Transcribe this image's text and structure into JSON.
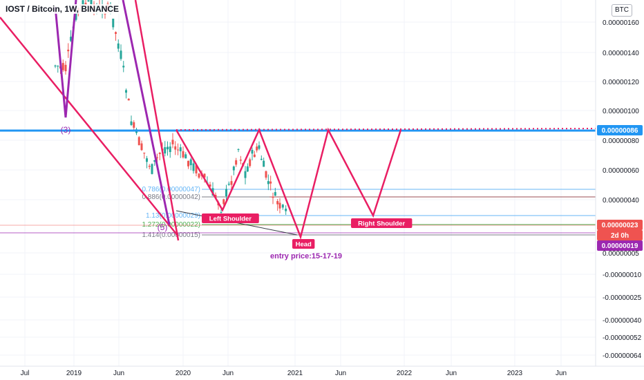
{
  "header": {
    "title": "IOST / Bitcoin, 1W, BINANCE",
    "currency_button": "BTC"
  },
  "colors": {
    "pattern": "#e91e63",
    "wave": "#9c27b0",
    "resistance": "#2196f3",
    "up": "#26a69a",
    "down": "#ef5350",
    "annotation": "#9c27b0"
  },
  "chart_data": {
    "type": "candlestick",
    "symbol": "IOST / Bitcoin",
    "interval": "1W",
    "exchange": "BINANCE",
    "y_tick_labels": [
      "0.00000160",
      "0.00000140",
      "0.00000120",
      "0.00000100",
      "0.00000080",
      "0.00000060",
      "0.00000040",
      "0.00000005",
      "-0.00000010",
      "-0.00000025",
      "-0.00000040",
      "-0.00000052",
      "-0.00000064"
    ],
    "x_tick_labels": [
      "Jul",
      "2019",
      "Jun",
      "2020",
      "Jun",
      "2021",
      "Jun",
      "2022",
      "Jun",
      "2023",
      "Jun"
    ],
    "price_labels": [
      {
        "value": "0.00000086",
        "color": "#2196f3"
      },
      {
        "value": "0.00000023",
        "color": "#ef5350"
      },
      {
        "value": "2d 0h",
        "color": "#ef5350"
      },
      {
        "value": "0.00000019",
        "color": "#9c27b0"
      }
    ],
    "horizontal_levels": [
      8.6e-07,
      2.3e-07,
      1.9e-07
    ],
    "fib_levels": [
      {
        "label": "0.786(0.00000047)",
        "value": 4.7e-07
      },
      {
        "label": "0.886(0.00000042)",
        "value": 4.2e-07
      },
      {
        "label": "1.13(0.00000029)",
        "value": 2.9e-07
      },
      {
        "label": "1.272(0.00000022)",
        "value": 2.2e-07
      },
      {
        "label": "1.414(0.00000015)",
        "value": 1.5e-07
      }
    ],
    "pattern_labels": [
      "Left Shoulder",
      "Head",
      "Right Shoulder"
    ],
    "wave_labels": [
      "(3)",
      "(5)"
    ],
    "annotation": "entry price:15-17-19"
  }
}
